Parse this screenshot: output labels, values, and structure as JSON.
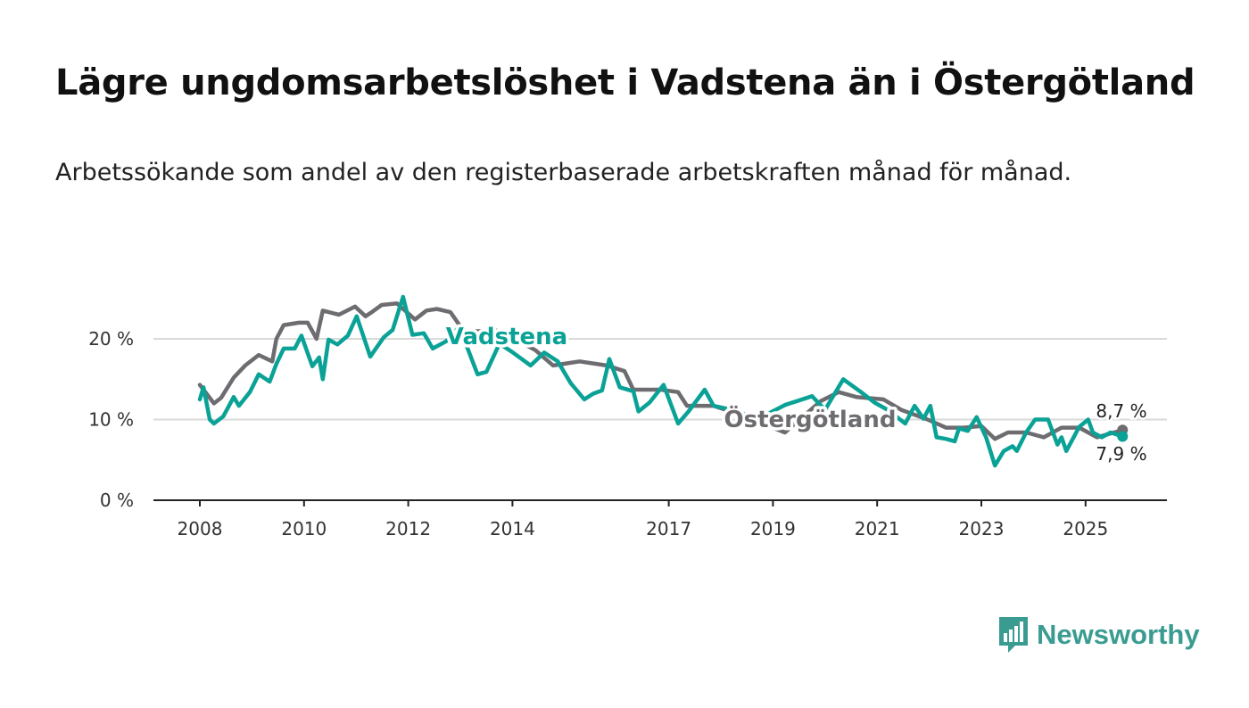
{
  "chart_data": {
    "type": "line",
    "title": "Lägre ungdomsarbetslöshet i Vadstena än i Östergötland",
    "subtitle": "Arbetssökande som andel av den registerbaserade arbetskraften månad för månad.",
    "xlabel": "",
    "ylabel": "",
    "ylim": [
      0,
      25
    ],
    "xlim": [
      2007.1,
      2026.5
    ],
    "grid": true,
    "y_ticks": [
      {
        "value": 0,
        "label": "0 %"
      },
      {
        "value": 10,
        "label": "10 %"
      },
      {
        "value": 20,
        "label": "20 %"
      }
    ],
    "x_ticks": [
      {
        "value": 2008,
        "label": "2008"
      },
      {
        "value": 2010,
        "label": "2010"
      },
      {
        "value": 2012,
        "label": "2012"
      },
      {
        "value": 2014,
        "label": "2014"
      },
      {
        "value": 2017,
        "label": "2017"
      },
      {
        "value": 2019,
        "label": "2019"
      },
      {
        "value": 2021,
        "label": "2021"
      },
      {
        "value": 2023,
        "label": "2023"
      },
      {
        "value": 2025,
        "label": "2025"
      }
    ],
    "series": [
      {
        "name": "Östergötland",
        "color": "#6e6c70",
        "end_label": "8,7 %",
        "x": [
          2008.0,
          2008.27,
          2008.41,
          2008.65,
          2008.87,
          2009.13,
          2009.39,
          2009.47,
          2009.61,
          2009.9,
          2010.07,
          2010.24,
          2010.36,
          2010.67,
          2010.98,
          2011.18,
          2011.32,
          2011.49,
          2011.78,
          2012.13,
          2012.35,
          2012.55,
          2012.81,
          2013.07,
          2013.75,
          2014.44,
          2014.78,
          2015.29,
          2015.81,
          2016.15,
          2016.32,
          2016.84,
          2017.18,
          2017.35,
          2017.86,
          2018.38,
          2019.23,
          2019.92,
          2020.26,
          2020.6,
          2021.12,
          2021.46,
          2021.97,
          2022.32,
          2022.66,
          2023.0,
          2023.26,
          2023.51,
          2023.86,
          2024.2,
          2024.54,
          2024.88,
          2025.22,
          2025.71
        ],
        "values": [
          14.3,
          12.0,
          12.7,
          15.2,
          16.7,
          18.0,
          17.2,
          20.0,
          21.7,
          22.0,
          22.0,
          20.0,
          23.5,
          23.0,
          24.0,
          22.8,
          23.4,
          24.2,
          24.4,
          22.4,
          23.5,
          23.7,
          23.3,
          20.9,
          21.0,
          18.6,
          16.7,
          17.2,
          16.7,
          16.0,
          13.7,
          13.7,
          13.4,
          11.7,
          11.7,
          10.6,
          8.4,
          12.3,
          13.4,
          12.8,
          12.5,
          11.2,
          10.0,
          9.0,
          9.0,
          9.2,
          7.6,
          8.4,
          8.4,
          7.8,
          9.0,
          9.0,
          7.8,
          8.7
        ]
      },
      {
        "name": "Vadstena",
        "color": "#0aa296",
        "end_label": "7,9 %",
        "x": [
          2008.0,
          2008.07,
          2008.19,
          2008.27,
          2008.45,
          2008.65,
          2008.75,
          2008.96,
          2009.13,
          2009.34,
          2009.47,
          2009.61,
          2009.82,
          2009.95,
          2010.16,
          2010.29,
          2010.36,
          2010.47,
          2010.64,
          2010.84,
          2011.01,
          2011.27,
          2011.53,
          2011.7,
          2011.9,
          2012.08,
          2012.3,
          2012.47,
          2012.73,
          2012.98,
          2013.33,
          2013.5,
          2013.75,
          2014.01,
          2014.35,
          2014.61,
          2014.87,
          2015.12,
          2015.38,
          2015.55,
          2015.72,
          2015.86,
          2016.06,
          2016.32,
          2016.42,
          2016.63,
          2016.9,
          2017.18,
          2017.38,
          2017.69,
          2017.86,
          2018.21,
          2018.72,
          2019.23,
          2019.75,
          2020.0,
          2020.35,
          2020.69,
          2020.95,
          2021.2,
          2021.54,
          2021.72,
          2021.89,
          2022.02,
          2022.14,
          2022.32,
          2022.49,
          2022.57,
          2022.74,
          2022.91,
          2023.09,
          2023.26,
          2023.43,
          2023.6,
          2023.68,
          2023.86,
          2024.03,
          2024.28,
          2024.46,
          2024.54,
          2024.63,
          2024.88,
          2025.05,
          2025.14,
          2025.31,
          2025.48,
          2025.71
        ],
        "values": [
          12.5,
          14.0,
          10.0,
          9.5,
          10.4,
          12.8,
          11.7,
          13.4,
          15.6,
          14.7,
          16.9,
          18.8,
          18.8,
          20.4,
          16.6,
          17.7,
          15.0,
          19.9,
          19.3,
          20.4,
          22.8,
          17.8,
          20.2,
          21.1,
          25.2,
          20.5,
          20.7,
          18.8,
          19.7,
          21.5,
          15.6,
          15.9,
          19.4,
          18.3,
          16.7,
          18.3,
          17.2,
          14.5,
          12.5,
          13.2,
          13.6,
          17.5,
          14.0,
          13.5,
          11.0,
          12.1,
          14.3,
          9.5,
          11.0,
          13.7,
          11.7,
          11.2,
          10.1,
          11.8,
          12.9,
          11.2,
          15.0,
          13.4,
          12.1,
          11.2,
          9.5,
          11.7,
          10.1,
          11.7,
          7.8,
          7.6,
          7.3,
          8.9,
          8.6,
          10.3,
          7.8,
          4.3,
          6.1,
          6.7,
          6.1,
          8.4,
          10.0,
          10.0,
          6.9,
          7.8,
          6.1,
          9.1,
          10.0,
          8.4,
          7.8,
          8.4,
          7.9
        ]
      }
    ]
  },
  "footer": {
    "brand": "Newsworthy",
    "brand_color": "#3a9c91"
  }
}
